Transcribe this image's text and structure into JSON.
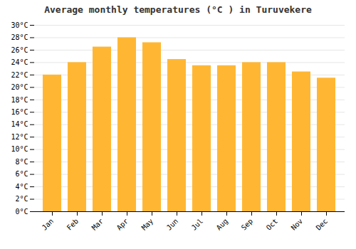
{
  "chart_data": {
    "type": "bar",
    "title": "Average monthly temperatures (°C ) in Turuvekere",
    "categories": [
      "Jan",
      "Feb",
      "Mar",
      "Apr",
      "May",
      "Jun",
      "Jul",
      "Aug",
      "Sep",
      "Oct",
      "Nov",
      "Dec"
    ],
    "values": [
      22.0,
      24.0,
      26.5,
      28.0,
      27.2,
      24.5,
      23.5,
      23.5,
      24.0,
      24.0,
      22.5,
      21.5
    ],
    "color": "#FFB733",
    "ylim": [
      0,
      30
    ],
    "yticks": [
      {
        "value": 0,
        "label": "0°C"
      },
      {
        "value": 2,
        "label": "2°C"
      },
      {
        "value": 4,
        "label": "4°C"
      },
      {
        "value": 6,
        "label": "6°C"
      },
      {
        "value": 8,
        "label": "8°C"
      },
      {
        "value": 10,
        "label": "10°C"
      },
      {
        "value": 12,
        "label": "12°C"
      },
      {
        "value": 14,
        "label": "14°C"
      },
      {
        "value": 16,
        "label": "16°C"
      },
      {
        "value": 18,
        "label": "18°C"
      },
      {
        "value": 20,
        "label": "20°C"
      },
      {
        "value": 22,
        "label": "22°C"
      },
      {
        "value": 24,
        "label": "24°C"
      },
      {
        "value": 26,
        "label": "26°C"
      },
      {
        "value": 28,
        "label": "28°C"
      },
      {
        "value": 30,
        "label": "30°C"
      }
    ],
    "grid": true
  }
}
